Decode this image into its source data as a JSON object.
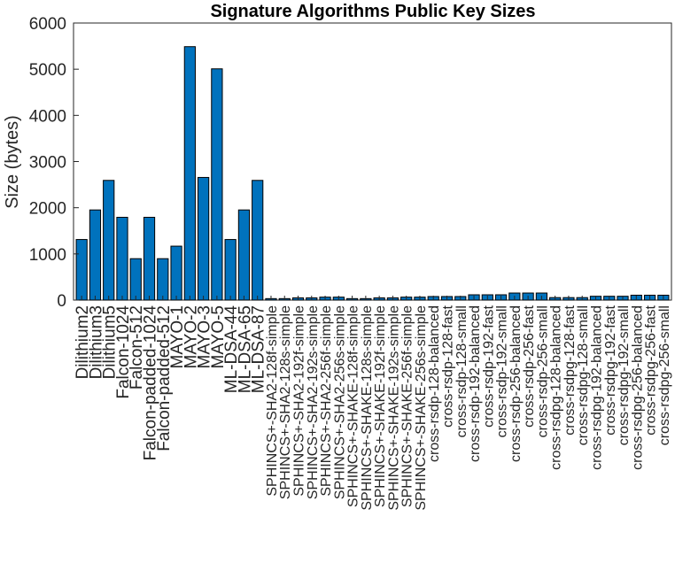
{
  "chart_data": {
    "type": "bar",
    "title": "Signature Algorithms Public Key Sizes",
    "xlabel": "",
    "ylabel": "Size (bytes)",
    "ylim": [
      0,
      6000
    ],
    "yticks": [
      0,
      1000,
      2000,
      3000,
      4000,
      5000,
      6000
    ],
    "bar_color": "#0072BD",
    "bar_edge_color": "#000000",
    "grid": false,
    "categories": [
      "Dilithium2",
      "Dilithium3",
      "Dilithium5",
      "Falcon-1024",
      "Falcon-512",
      "Falcon-padded-1024",
      "Falcon-padded-512",
      "MAYO-1",
      "MAYO-2",
      "MAYO-3",
      "MAYO-5",
      "ML-DSA-44",
      "ML-DSA-65",
      "ML-DSA-87",
      "SPHINCS+-SHA2-128f-simple",
      "SPHINCS+-SHA2-128s-simple",
      "SPHINCS+-SHA2-192f-simple",
      "SPHINCS+-SHA2-192s-simple",
      "SPHINCS+-SHA2-256f-simple",
      "SPHINCS+-SHA2-256s-simple",
      "SPHINCS+-SHAKE-128f-simple",
      "SPHINCS+-SHAKE-128s-simple",
      "SPHINCS+-SHAKE-192f-simple",
      "SPHINCS+-SHAKE-192s-simple",
      "SPHINCS+-SHAKE-256f-simple",
      "SPHINCS+-SHAKE-256s-simple",
      "cross-rsdp-128-balanced",
      "cross-rsdp-128-fast",
      "cross-rsdp-128-small",
      "cross-rsdp-192-balanced",
      "cross-rsdp-192-fast",
      "cross-rsdp-192-small",
      "cross-rsdp-256-balanced",
      "cross-rsdp-256-fast",
      "cross-rsdp-256-small",
      "cross-rsdpg-128-balanced",
      "cross-rsdpg-128-fast",
      "cross-rsdpg-128-small",
      "cross-rsdpg-192-balanced",
      "cross-rsdpg-192-fast",
      "cross-rsdpg-192-small",
      "cross-rsdpg-256-balanced",
      "cross-rsdpg-256-fast",
      "cross-rsdpg-256-small"
    ],
    "values": [
      1312,
      1952,
      2592,
      1793,
      897,
      1793,
      897,
      1168,
      5488,
      2656,
      5008,
      1312,
      1952,
      2592,
      32,
      32,
      48,
      48,
      64,
      64,
      32,
      32,
      48,
      48,
      64,
      64,
      77,
      77,
      77,
      115,
      115,
      115,
      153,
      153,
      153,
      54,
      54,
      54,
      83,
      83,
      83,
      106,
      106,
      106
    ]
  }
}
